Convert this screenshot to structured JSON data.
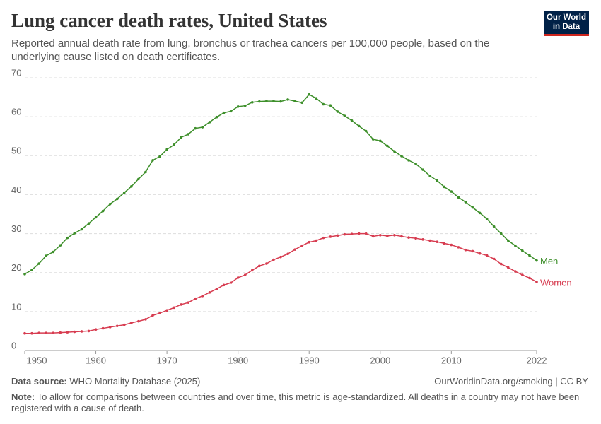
{
  "chart_data": {
    "type": "line",
    "title": "Lung cancer death rates, United States",
    "subtitle": "Reported annual death rate from lung, bronchus or trachea cancers per 100,000 people, based on the underlying cause listed on death certificates.",
    "logo": "Our World in Data",
    "x": [
      1950,
      1951,
      1952,
      1953,
      1954,
      1955,
      1956,
      1957,
      1958,
      1959,
      1960,
      1961,
      1962,
      1963,
      1964,
      1965,
      1966,
      1967,
      1968,
      1969,
      1970,
      1971,
      1972,
      1973,
      1974,
      1975,
      1976,
      1977,
      1978,
      1979,
      1980,
      1981,
      1982,
      1983,
      1984,
      1985,
      1986,
      1987,
      1988,
      1989,
      1990,
      1991,
      1992,
      1993,
      1994,
      1995,
      1996,
      1997,
      1998,
      1999,
      2000,
      2001,
      2002,
      2003,
      2004,
      2005,
      2006,
      2007,
      2008,
      2009,
      2010,
      2011,
      2012,
      2013,
      2014,
      2015,
      2016,
      2017,
      2018,
      2019,
      2020,
      2021,
      2022
    ],
    "series": [
      {
        "name": "Men",
        "color": "#3d8f2a",
        "values": [
          19.6,
          20.7,
          22.3,
          24.3,
          25.3,
          27.0,
          28.9,
          30.1,
          31.1,
          32.6,
          34.2,
          35.8,
          37.6,
          38.9,
          40.5,
          42.1,
          44.0,
          45.8,
          48.8,
          49.8,
          51.6,
          52.8,
          54.7,
          55.5,
          57.0,
          57.3,
          58.6,
          59.9,
          61.0,
          61.4,
          62.6,
          62.8,
          63.7,
          63.9,
          64.0,
          64.0,
          63.9,
          64.4,
          64.0,
          63.6,
          65.7,
          64.7,
          63.2,
          62.9,
          61.3,
          60.2,
          59.0,
          57.6,
          56.3,
          54.2,
          53.8,
          52.5,
          51.1,
          49.9,
          48.8,
          47.9,
          46.4,
          44.8,
          43.6,
          42.0,
          40.8,
          39.3,
          38.1,
          36.7,
          35.3,
          33.8,
          31.8,
          30.0,
          28.2,
          26.9,
          25.6,
          24.4,
          23.1
        ]
      },
      {
        "name": "Women",
        "color": "#d73c50",
        "values": [
          4.4,
          4.4,
          4.5,
          4.5,
          4.5,
          4.6,
          4.7,
          4.8,
          4.9,
          5.0,
          5.4,
          5.7,
          6.0,
          6.3,
          6.6,
          7.1,
          7.5,
          8.0,
          9.0,
          9.6,
          10.3,
          11.0,
          11.8,
          12.3,
          13.3,
          14.0,
          14.9,
          15.8,
          16.8,
          17.4,
          18.7,
          19.4,
          20.6,
          21.7,
          22.3,
          23.3,
          24.0,
          24.8,
          25.9,
          26.9,
          27.8,
          28.2,
          28.9,
          29.2,
          29.5,
          29.8,
          29.9,
          30.0,
          30.0,
          29.3,
          29.6,
          29.4,
          29.6,
          29.3,
          29.0,
          28.8,
          28.5,
          28.2,
          27.9,
          27.5,
          27.1,
          26.5,
          25.8,
          25.5,
          24.9,
          24.4,
          23.5,
          22.2,
          21.3,
          20.3,
          19.4,
          18.6,
          17.6
        ]
      }
    ],
    "xlim": [
      1950,
      2022
    ],
    "xticks": [
      1950,
      1960,
      1970,
      1980,
      1990,
      2000,
      2010,
      2022
    ],
    "ylim": [
      0,
      70
    ],
    "yticks": [
      0,
      10,
      20,
      30,
      40,
      50,
      60,
      70
    ],
    "grid": true,
    "source_label": "Data source:",
    "source": "WHO Mortality Database (2025)",
    "credit": "OurWorldinData.org/smoking | CC BY",
    "note_label": "Note:",
    "note": "To allow for comparisons between countries and over time, this metric is age-standardized. All deaths in a country may not have been registered with a cause of death."
  }
}
